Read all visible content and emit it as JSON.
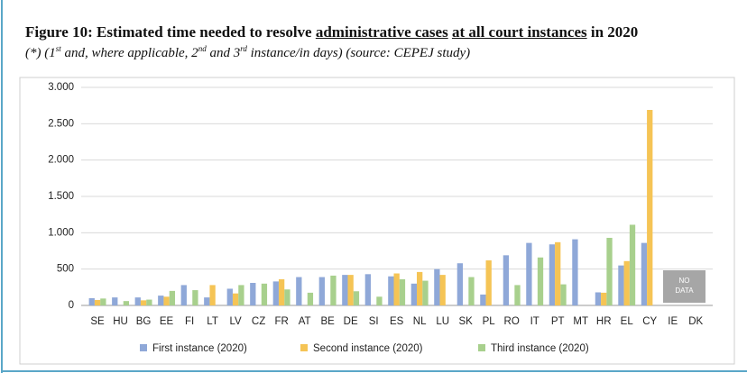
{
  "chart_data": {
    "type": "bar",
    "title_parts": [
      {
        "text": "Figure 10: Estimated time needed to resolve "
      },
      {
        "text": "administrative cases",
        "underline": true
      },
      {
        "text": " "
      },
      {
        "text": "at all court instances",
        "underline": true
      },
      {
        "text": " in 2020"
      }
    ],
    "subtitle_parts": [
      {
        "text": "(*) (1"
      },
      {
        "text": "st",
        "sup": true
      },
      {
        "text": " and, where applicable, 2"
      },
      {
        "text": "nd",
        "sup": true
      },
      {
        "text": " and 3"
      },
      {
        "text": "rd",
        "sup": true
      },
      {
        "text": " instance/in days) (source: CEPEJ study)"
      }
    ],
    "categories": [
      "SE",
      "HU",
      "BG",
      "EE",
      "FI",
      "LT",
      "LV",
      "CZ",
      "FR",
      "AT",
      "BE",
      "DE",
      "SI",
      "ES",
      "NL",
      "LU",
      "SK",
      "PL",
      "RO",
      "IT",
      "PT",
      "MT",
      "HR",
      "EL",
      "CY",
      "IE",
      "DK"
    ],
    "series": [
      {
        "name": "First instance (2020)",
        "color": "#8fa8d8",
        "values": [
          100,
          110,
          110,
          135,
          280,
          110,
          230,
          310,
          330,
          390,
          390,
          420,
          430,
          400,
          300,
          500,
          580,
          150,
          690,
          860,
          840,
          910,
          180,
          550,
          860,
          null,
          null
        ]
      },
      {
        "name": "Second instance (2020)",
        "color": "#f5c455",
        "values": [
          75,
          null,
          70,
          120,
          null,
          280,
          165,
          null,
          360,
          null,
          null,
          420,
          null,
          440,
          460,
          420,
          null,
          620,
          null,
          null,
          870,
          null,
          175,
          610,
          2690,
          null,
          null
        ]
      },
      {
        "name": "Third instance (2020)",
        "color": "#a8d08d",
        "values": [
          95,
          60,
          80,
          200,
          210,
          null,
          280,
          300,
          220,
          175,
          410,
          195,
          120,
          360,
          340,
          null,
          390,
          null,
          280,
          660,
          290,
          null,
          930,
          1110,
          null,
          null,
          null
        ]
      }
    ],
    "ylim": [
      0,
      3000
    ],
    "yticks": [
      0,
      500,
      {
        "value": 1000,
        "label": "1.000"
      },
      {
        "value": 1500,
        "label": "1.500"
      },
      {
        "value": 2000,
        "label": "2.000"
      },
      {
        "value": 2500,
        "label": "2.500"
      },
      {
        "value": 3000,
        "label": "3.000"
      }
    ],
    "grid": true,
    "legend": "bottom",
    "annotation_lines": [
      "NO",
      "DATA"
    ]
  }
}
